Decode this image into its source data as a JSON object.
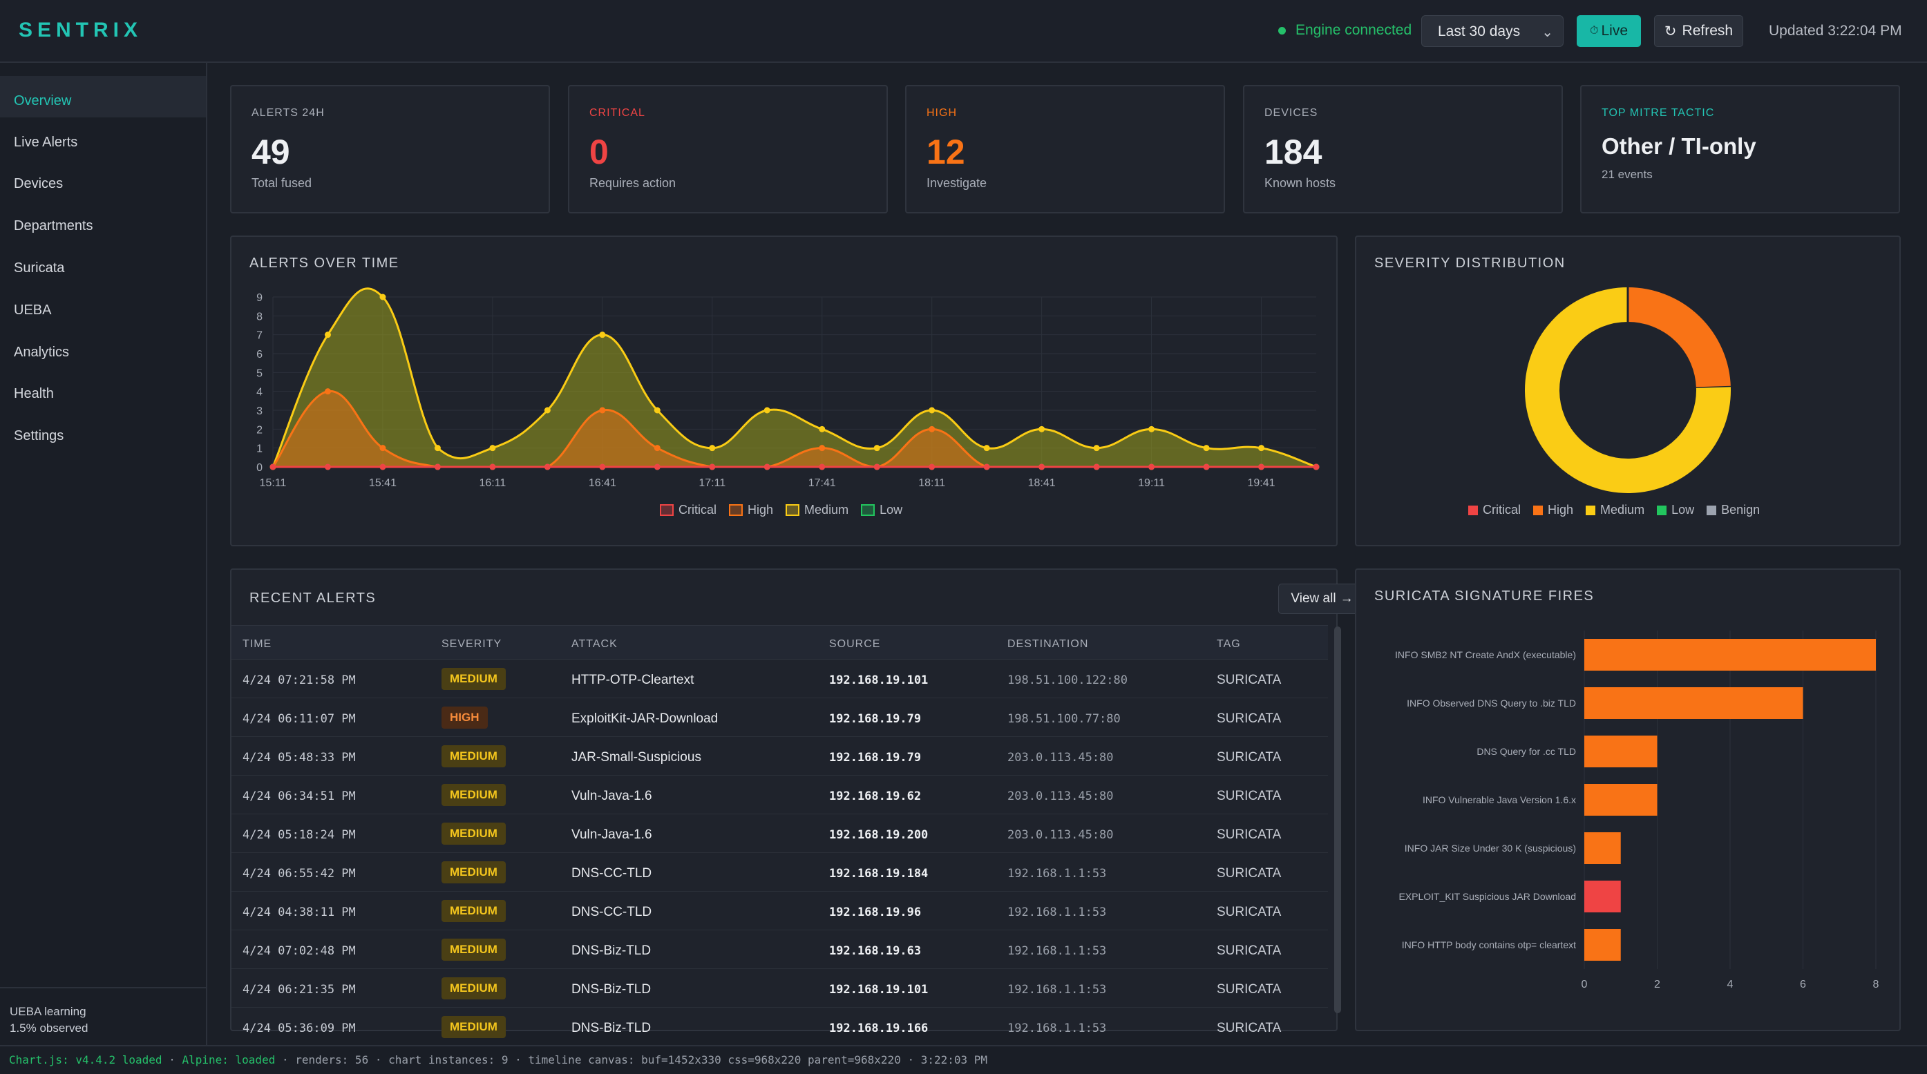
{
  "app": {
    "brand": "SENTRIX"
  },
  "topbar": {
    "engine_status": "Engine connected",
    "range_selected": "Last 30 days",
    "live_label": "Live",
    "refresh_label": "Refresh",
    "updated": "Updated 3:22:04 PM"
  },
  "sidebar": {
    "items": [
      {
        "label": "Overview",
        "active": true
      },
      {
        "label": "Live Alerts"
      },
      {
        "label": "Devices"
      },
      {
        "label": "Departments"
      },
      {
        "label": "Suricata"
      },
      {
        "label": "UEBA"
      },
      {
        "label": "Analytics"
      },
      {
        "label": "Health"
      },
      {
        "label": "Settings"
      }
    ],
    "footer_line1": "UEBA learning",
    "footer_line2": "1.5% observed"
  },
  "kpis": [
    {
      "label": "ALERTS 24H",
      "value": "49",
      "sub": "Total fused",
      "label_color": "#a9aeb8",
      "value_color": "#eef0f3"
    },
    {
      "label": "CRITICAL",
      "value": "0",
      "sub": "Requires action",
      "label_color": "#ef4444",
      "value_color": "#ef4444"
    },
    {
      "label": "HIGH",
      "value": "12",
      "sub": "Investigate",
      "label_color": "#f97316",
      "value_color": "#f97316"
    },
    {
      "label": "DEVICES",
      "value": "184",
      "sub": "Known hosts",
      "label_color": "#a9aeb8",
      "value_color": "#eef0f3"
    },
    {
      "label": "TOP MITRE TACTIC",
      "value": "Other / TI-only",
      "sub": "21 events",
      "label_color": "#23c5b4",
      "value_color": "#eef0f3"
    }
  ],
  "panels": {
    "alerts_over_time": "ALERTS OVER TIME",
    "severity_distribution": "SEVERITY DISTRIBUTION",
    "recent_alerts": "RECENT ALERTS",
    "view_all": "View all",
    "suricata_fires": "SURICATA SIGNATURE FIRES"
  },
  "colors": {
    "critical": "#ef4444",
    "high": "#f97316",
    "medium": "#facc15",
    "low": "#22c55e",
    "benign": "#9ca3af",
    "accent": "#23c5b4"
  },
  "chart_data": [
    {
      "type": "area",
      "title": "ALERTS OVER TIME",
      "x_tick_labels": [
        "15:11",
        "15:41",
        "16:11",
        "16:41",
        "17:11",
        "17:41",
        "18:11",
        "18:41",
        "19:11",
        "19:41"
      ],
      "y_ticks": [
        0,
        1,
        2,
        3,
        4,
        5,
        6,
        7,
        8,
        9
      ],
      "ylim": [
        0,
        9
      ],
      "x": [
        "15:11",
        "15:26",
        "15:41",
        "15:56",
        "16:11",
        "16:26",
        "16:41",
        "16:56",
        "17:11",
        "17:26",
        "17:41",
        "17:56",
        "18:11",
        "18:26",
        "18:41",
        "18:56",
        "19:11",
        "19:26",
        "19:41",
        "19:56"
      ],
      "series": [
        {
          "name": "Critical",
          "color": "#ef4444",
          "values": [
            0,
            0,
            0,
            0,
            0,
            0,
            0,
            0,
            0,
            0,
            0,
            0,
            0,
            0,
            0,
            0,
            0,
            0,
            0,
            0
          ]
        },
        {
          "name": "High",
          "color": "#f97316",
          "values": [
            0,
            4,
            1,
            0,
            0,
            0,
            3,
            1,
            0,
            0,
            1,
            0,
            2,
            0,
            0,
            0,
            0,
            0,
            0,
            0
          ]
        },
        {
          "name": "Medium",
          "color": "#facc15",
          "values": [
            0,
            7,
            9,
            1,
            1,
            3,
            7,
            3,
            1,
            3,
            2,
            1,
            3,
            1,
            2,
            1,
            2,
            1,
            1,
            0
          ]
        },
        {
          "name": "Low",
          "color": "#22c55e",
          "values": [
            0,
            0,
            0,
            0,
            0,
            0,
            0,
            0,
            0,
            0,
            0,
            0,
            0,
            0,
            0,
            0,
            0,
            0,
            0,
            0
          ]
        }
      ],
      "legend": [
        "Critical",
        "High",
        "Medium",
        "Low"
      ],
      "grid": true,
      "legend_position": "bottom"
    },
    {
      "type": "pie",
      "title": "SEVERITY DISTRIBUTION",
      "categories": [
        "Critical",
        "High",
        "Medium",
        "Low",
        "Benign"
      ],
      "values": [
        0,
        12,
        37,
        0,
        0
      ],
      "colors": [
        "#ef4444",
        "#f97316",
        "#facc15",
        "#22c55e",
        "#9ca3af"
      ],
      "legend_position": "bottom"
    },
    {
      "type": "bar",
      "orientation": "horizontal",
      "title": "SURICATA SIGNATURE FIRES",
      "categories": [
        "INFO SMB2 NT Create AndX (executable)",
        "INFO Observed DNS Query to .biz TLD",
        "DNS Query for .cc TLD",
        "INFO Vulnerable Java Version 1.6.x",
        "INFO JAR Size Under 30 K (suspicious)",
        "EXPLOIT_KIT Suspicious JAR Download",
        "INFO HTTP body contains otp= cleartext"
      ],
      "values": [
        8,
        6,
        2,
        2,
        1,
        1,
        1
      ],
      "colors": [
        "#f97316",
        "#f97316",
        "#f97316",
        "#f97316",
        "#f97316",
        "#ef4444",
        "#f97316"
      ],
      "x_ticks": [
        0,
        2,
        4,
        6,
        8
      ],
      "xlim": [
        0,
        8
      ],
      "grid": true
    }
  ],
  "table": {
    "headers": [
      "TIME",
      "SEVERITY",
      "ATTACK",
      "SOURCE",
      "DESTINATION",
      "TAG"
    ],
    "rows": [
      {
        "time": "4/24 07:21:58 PM",
        "severity": "MEDIUM",
        "attack": "HTTP-OTP-Cleartext",
        "source": "192.168.19.101",
        "destination": "198.51.100.122:80",
        "tag": "SURICATA"
      },
      {
        "time": "4/24 06:11:07 PM",
        "severity": "HIGH",
        "attack": "ExploitKit-JAR-Download",
        "source": "192.168.19.79",
        "destination": "198.51.100.77:80",
        "tag": "SURICATA"
      },
      {
        "time": "4/24 05:48:33 PM",
        "severity": "MEDIUM",
        "attack": "JAR-Small-Suspicious",
        "source": "192.168.19.79",
        "destination": "203.0.113.45:80",
        "tag": "SURICATA"
      },
      {
        "time": "4/24 06:34:51 PM",
        "severity": "MEDIUM",
        "attack": "Vuln-Java-1.6",
        "source": "192.168.19.62",
        "destination": "203.0.113.45:80",
        "tag": "SURICATA"
      },
      {
        "time": "4/24 05:18:24 PM",
        "severity": "MEDIUM",
        "attack": "Vuln-Java-1.6",
        "source": "192.168.19.200",
        "destination": "203.0.113.45:80",
        "tag": "SURICATA"
      },
      {
        "time": "4/24 06:55:42 PM",
        "severity": "MEDIUM",
        "attack": "DNS-CC-TLD",
        "source": "192.168.19.184",
        "destination": "192.168.1.1:53",
        "tag": "SURICATA"
      },
      {
        "time": "4/24 04:38:11 PM",
        "severity": "MEDIUM",
        "attack": "DNS-CC-TLD",
        "source": "192.168.19.96",
        "destination": "192.168.1.1:53",
        "tag": "SURICATA"
      },
      {
        "time": "4/24 07:02:48 PM",
        "severity": "MEDIUM",
        "attack": "DNS-Biz-TLD",
        "source": "192.168.19.63",
        "destination": "192.168.1.1:53",
        "tag": "SURICATA"
      },
      {
        "time": "4/24 06:21:35 PM",
        "severity": "MEDIUM",
        "attack": "DNS-Biz-TLD",
        "source": "192.168.19.101",
        "destination": "192.168.1.1:53",
        "tag": "SURICATA"
      },
      {
        "time": "4/24 05:36:09 PM",
        "severity": "MEDIUM",
        "attack": "DNS-Biz-TLD",
        "source": "192.168.19.166",
        "destination": "192.168.1.1:53",
        "tag": "SURICATA"
      }
    ]
  },
  "footer": {
    "chartjs": "Chart.js: v4.4.2 loaded",
    "alpine": "Alpine: loaded",
    "rest": "· renders: 56 · chart instances: 9 · timeline canvas: buf=1452x330 css=968x220 parent=968x220 · 3:22:03 PM"
  }
}
